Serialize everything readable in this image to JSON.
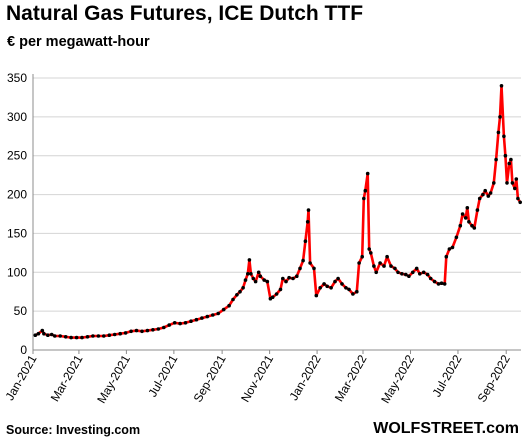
{
  "header": {
    "title": "Natural Gas Futures, ICE Dutch TTF",
    "subtitle": "€ per megawatt-hour"
  },
  "footer": {
    "source": "Source: Investing.com",
    "brand": "WOLFSTREET.com"
  },
  "colors": {
    "line": "#ff0000",
    "marker": "#000000",
    "grid": "#d4d4d4"
  },
  "chart_data": {
    "type": "line",
    "title": "Natural Gas Futures, ICE Dutch TTF",
    "ylabel": "€ per megawatt-hour",
    "xlabel": "",
    "ylim": [
      0,
      350
    ],
    "yticks": [
      0,
      50,
      100,
      150,
      200,
      250,
      300,
      350
    ],
    "xlim": [
      "2021-01-01",
      "2022-09-20"
    ],
    "xtick_labels": [
      {
        "date": "2021-01-01",
        "label": "Jan-2021"
      },
      {
        "date": "2021-03-01",
        "label": "Mar-2021"
      },
      {
        "date": "2021-05-01",
        "label": "May-2021"
      },
      {
        "date": "2021-07-01",
        "label": "Jul-2021"
      },
      {
        "date": "2021-09-01",
        "label": "Sep-2021"
      },
      {
        "date": "2021-11-01",
        "label": "Nov-2021"
      },
      {
        "date": "2022-01-01",
        "label": "Jan-2022"
      },
      {
        "date": "2022-03-01",
        "label": "Mar-2022"
      },
      {
        "date": "2022-05-01",
        "label": "May-2022"
      },
      {
        "date": "2022-07-01",
        "label": "Jul-2022"
      },
      {
        "date": "2022-09-01",
        "label": "Sep-2022"
      }
    ],
    "grid": "horizontal",
    "series": [
      {
        "name": "",
        "points": [
          [
            "2021-01-04",
            19
          ],
          [
            "2021-01-08",
            21
          ],
          [
            "2021-01-13",
            25
          ],
          [
            "2021-01-15",
            21
          ],
          [
            "2021-01-20",
            19
          ],
          [
            "2021-01-25",
            20
          ],
          [
            "2021-01-29",
            18
          ],
          [
            "2021-02-05",
            18
          ],
          [
            "2021-02-12",
            17
          ],
          [
            "2021-02-19",
            16
          ],
          [
            "2021-02-26",
            16
          ],
          [
            "2021-03-05",
            16
          ],
          [
            "2021-03-12",
            17
          ],
          [
            "2021-03-19",
            18
          ],
          [
            "2021-03-26",
            18
          ],
          [
            "2021-04-02",
            18
          ],
          [
            "2021-04-09",
            19
          ],
          [
            "2021-04-16",
            20
          ],
          [
            "2021-04-23",
            21
          ],
          [
            "2021-04-30",
            22
          ],
          [
            "2021-05-07",
            24
          ],
          [
            "2021-05-14",
            25
          ],
          [
            "2021-05-21",
            24
          ],
          [
            "2021-05-28",
            25
          ],
          [
            "2021-06-04",
            26
          ],
          [
            "2021-06-11",
            27
          ],
          [
            "2021-06-18",
            29
          ],
          [
            "2021-06-25",
            32
          ],
          [
            "2021-07-02",
            35
          ],
          [
            "2021-07-09",
            34
          ],
          [
            "2021-07-16",
            35
          ],
          [
            "2021-07-23",
            37
          ],
          [
            "2021-07-30",
            39
          ],
          [
            "2021-08-06",
            41
          ],
          [
            "2021-08-13",
            43
          ],
          [
            "2021-08-20",
            45
          ],
          [
            "2021-08-27",
            47
          ],
          [
            "2021-09-03",
            52
          ],
          [
            "2021-09-10",
            57
          ],
          [
            "2021-09-15",
            65
          ],
          [
            "2021-09-20",
            71
          ],
          [
            "2021-09-24",
            75
          ],
          [
            "2021-09-28",
            80
          ],
          [
            "2021-10-01",
            90
          ],
          [
            "2021-10-04",
            98
          ],
          [
            "2021-10-06",
            116
          ],
          [
            "2021-10-08",
            98
          ],
          [
            "2021-10-11",
            92
          ],
          [
            "2021-10-14",
            88
          ],
          [
            "2021-10-18",
            100
          ],
          [
            "2021-10-20",
            95
          ],
          [
            "2021-10-25",
            90
          ],
          [
            "2021-10-29",
            88
          ],
          [
            "2021-11-02",
            66
          ],
          [
            "2021-11-05",
            68
          ],
          [
            "2021-11-10",
            72
          ],
          [
            "2021-11-15",
            78
          ],
          [
            "2021-11-18",
            92
          ],
          [
            "2021-11-22",
            88
          ],
          [
            "2021-11-26",
            93
          ],
          [
            "2021-12-01",
            92
          ],
          [
            "2021-12-06",
            95
          ],
          [
            "2021-12-10",
            105
          ],
          [
            "2021-12-14",
            115
          ],
          [
            "2021-12-17",
            140
          ],
          [
            "2021-12-20",
            165
          ],
          [
            "2021-12-21",
            180
          ],
          [
            "2021-12-23",
            112
          ],
          [
            "2021-12-28",
            105
          ],
          [
            "2021-12-31",
            70
          ],
          [
            "2022-01-05",
            80
          ],
          [
            "2022-01-10",
            85
          ],
          [
            "2022-01-14",
            82
          ],
          [
            "2022-01-19",
            80
          ],
          [
            "2022-01-24",
            88
          ],
          [
            "2022-01-28",
            92
          ],
          [
            "2022-02-02",
            85
          ],
          [
            "2022-02-07",
            80
          ],
          [
            "2022-02-11",
            78
          ],
          [
            "2022-02-16",
            72
          ],
          [
            "2022-02-21",
            75
          ],
          [
            "2022-02-24",
            112
          ],
          [
            "2022-02-28",
            120
          ],
          [
            "2022-03-02",
            195
          ],
          [
            "2022-03-04",
            205
          ],
          [
            "2022-03-07",
            227
          ],
          [
            "2022-03-09",
            130
          ],
          [
            "2022-03-11",
            125
          ],
          [
            "2022-03-15",
            108
          ],
          [
            "2022-03-18",
            100
          ],
          [
            "2022-03-23",
            112
          ],
          [
            "2022-03-28",
            108
          ],
          [
            "2022-04-01",
            120
          ],
          [
            "2022-04-06",
            108
          ],
          [
            "2022-04-11",
            105
          ],
          [
            "2022-04-15",
            100
          ],
          [
            "2022-04-20",
            98
          ],
          [
            "2022-04-25",
            97
          ],
          [
            "2022-04-29",
            95
          ],
          [
            "2022-05-04",
            100
          ],
          [
            "2022-05-09",
            105
          ],
          [
            "2022-05-13",
            98
          ],
          [
            "2022-05-18",
            100
          ],
          [
            "2022-05-23",
            97
          ],
          [
            "2022-05-27",
            92
          ],
          [
            "2022-06-01",
            88
          ],
          [
            "2022-06-06",
            85
          ],
          [
            "2022-06-10",
            86
          ],
          [
            "2022-06-14",
            85
          ],
          [
            "2022-06-16",
            120
          ],
          [
            "2022-06-20",
            130
          ],
          [
            "2022-06-24",
            132
          ],
          [
            "2022-06-29",
            145
          ],
          [
            "2022-07-04",
            160
          ],
          [
            "2022-07-07",
            175
          ],
          [
            "2022-07-11",
            170
          ],
          [
            "2022-07-13",
            183
          ],
          [
            "2022-07-15",
            165
          ],
          [
            "2022-07-19",
            160
          ],
          [
            "2022-07-22",
            157
          ],
          [
            "2022-07-26",
            180
          ],
          [
            "2022-07-29",
            195
          ],
          [
            "2022-08-02",
            200
          ],
          [
            "2022-08-05",
            205
          ],
          [
            "2022-08-09",
            198
          ],
          [
            "2022-08-12",
            202
          ],
          [
            "2022-08-16",
            215
          ],
          [
            "2022-08-19",
            245
          ],
          [
            "2022-08-22",
            280
          ],
          [
            "2022-08-24",
            300
          ],
          [
            "2022-08-26",
            340
          ],
          [
            "2022-08-29",
            275
          ],
          [
            "2022-08-31",
            250
          ],
          [
            "2022-09-02",
            215
          ],
          [
            "2022-09-05",
            240
          ],
          [
            "2022-09-07",
            245
          ],
          [
            "2022-09-09",
            215
          ],
          [
            "2022-09-12",
            208
          ],
          [
            "2022-09-14",
            220
          ],
          [
            "2022-09-16",
            195
          ],
          [
            "2022-09-19",
            190
          ]
        ]
      }
    ]
  }
}
